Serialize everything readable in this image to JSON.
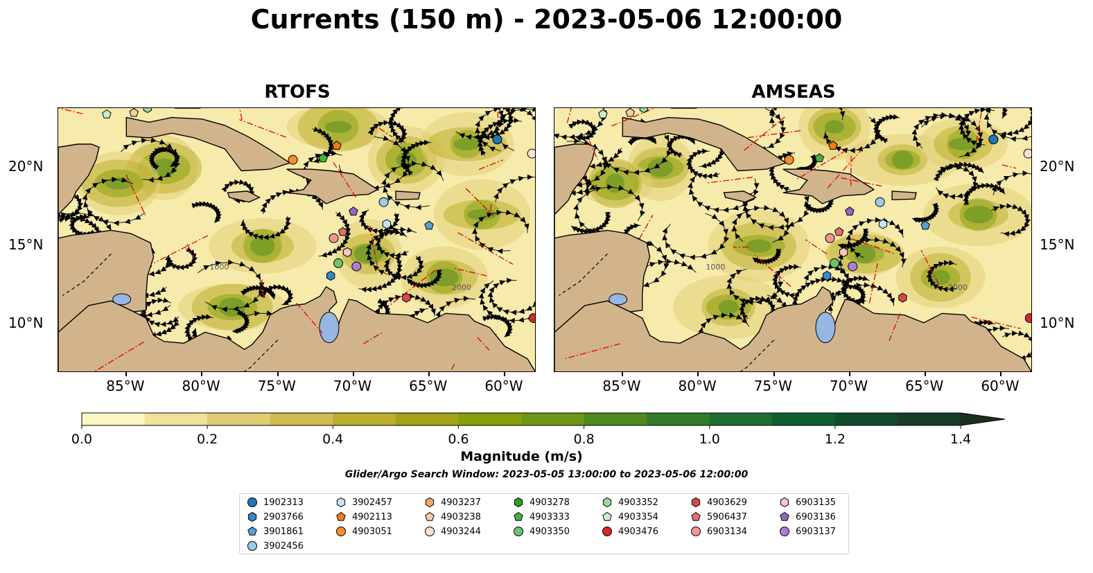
{
  "title": "Currents (150 m) - 2023-05-06 12:00:00",
  "panels": [
    {
      "title": "RTOFS"
    },
    {
      "title": "AMSEAS"
    }
  ],
  "lon_ticks": [
    "85°W",
    "80°W",
    "75°W",
    "70°W",
    "65°W",
    "60°W"
  ],
  "lat_ticks": [
    "20°N",
    "15°N",
    "10°N"
  ],
  "contour_labels": [
    "2000",
    "1000"
  ],
  "colorbar": {
    "label": "Magnitude (m/s)",
    "tick_labels": [
      "0.0",
      "0.2",
      "0.4",
      "0.6",
      "0.8",
      "1.0",
      "1.2",
      "1.4"
    ],
    "range": [
      0,
      1.5
    ],
    "colors": [
      "#fdf7c3",
      "#efe29a",
      "#e0cd73",
      "#d1bb4f",
      "#bcad2c",
      "#a3a31a",
      "#86a00c",
      "#6d9714",
      "#4f8a1f",
      "#33792a",
      "#1f6c33",
      "#0f5e32",
      "#124b2b",
      "#173d26",
      "#1a2e1d"
    ]
  },
  "search_window": "Glider/Argo Search Window: 2023-05-05 13:00:00 to 2023-05-06 12:00:00",
  "legend": [
    {
      "id": "1902313",
      "shape": "circle",
      "color": "#1f77b4"
    },
    {
      "id": "2903766",
      "shape": "hexagon",
      "color": "#3a87c8"
    },
    {
      "id": "3901861",
      "shape": "pentagon",
      "color": "#5a9fd4"
    },
    {
      "id": "3902456",
      "shape": "circle",
      "color": "#9ecae9"
    },
    {
      "id": "3902457",
      "shape": "hexagon",
      "color": "#c6e2f7"
    },
    {
      "id": "4902113",
      "shape": "pentagon",
      "color": "#f07d14"
    },
    {
      "id": "4903051",
      "shape": "circle",
      "color": "#f28e2b"
    },
    {
      "id": "4903237",
      "shape": "hexagon",
      "color": "#f5a96b"
    },
    {
      "id": "4903238",
      "shape": "pentagon",
      "color": "#f9caa0"
    },
    {
      "id": "4903244",
      "shape": "circle",
      "color": "#fde3cc"
    },
    {
      "id": "4903278",
      "shape": "hexagon",
      "color": "#2ca02c"
    },
    {
      "id": "4903333",
      "shape": "pentagon",
      "color": "#45b045"
    },
    {
      "id": "4903350",
      "shape": "circle",
      "color": "#6cc36c"
    },
    {
      "id": "4903352",
      "shape": "hexagon",
      "color": "#9ad99a"
    },
    {
      "id": "4903354",
      "shape": "pentagon",
      "color": "#c8efc8"
    },
    {
      "id": "4903476",
      "shape": "circle",
      "color": "#d62728"
    },
    {
      "id": "4903629",
      "shape": "hexagon",
      "color": "#d94848"
    },
    {
      "id": "5906437",
      "shape": "pentagon",
      "color": "#e46e6e"
    },
    {
      "id": "6903134",
      "shape": "circle",
      "color": "#f09595"
    },
    {
      "id": "6903135",
      "shape": "hexagon",
      "color": "#f8c4c4"
    },
    {
      "id": "6903136",
      "shape": "pentagon",
      "color": "#9467bd"
    },
    {
      "id": "6903137",
      "shape": "circle",
      "color": "#a97fd0"
    }
  ],
  "floats": [
    {
      "id": "1902313",
      "lon": -60.5,
      "lat": 21.8
    },
    {
      "id": "4903476",
      "lon": -58.1,
      "lat": 10.4
    },
    {
      "id": "4903051",
      "lon": -74.0,
      "lat": 20.5
    },
    {
      "id": "4903333",
      "lon": -72.0,
      "lat": 20.6
    },
    {
      "id": "4902113",
      "lon": -71.1,
      "lat": 21.4
    },
    {
      "id": "4903244",
      "lon": -58.2,
      "lat": 20.9
    },
    {
      "id": "3902456",
      "lon": -68.0,
      "lat": 17.8
    },
    {
      "id": "3902457",
      "lon": -67.8,
      "lat": 16.4
    },
    {
      "id": "3901861",
      "lon": -65.0,
      "lat": 16.3
    },
    {
      "id": "6903136",
      "lon": -70.0,
      "lat": 17.2
    },
    {
      "id": "5906437",
      "lon": -70.7,
      "lat": 15.9
    },
    {
      "id": "6903134",
      "lon": -71.3,
      "lat": 15.5
    },
    {
      "id": "6903135",
      "lon": -70.4,
      "lat": 14.6
    },
    {
      "id": "4903350",
      "lon": -71.0,
      "lat": 13.9
    },
    {
      "id": "6903137",
      "lon": -69.8,
      "lat": 13.7
    },
    {
      "id": "2903766",
      "lon": -71.5,
      "lat": 13.1
    },
    {
      "id": "4903629",
      "lon": -66.5,
      "lat": 11.7
    },
    {
      "id": "4903354",
      "lon": -86.3,
      "lat": 23.4
    },
    {
      "id": "4903238",
      "lon": -84.5,
      "lat": 23.5
    },
    {
      "id": "4903352",
      "lon": -83.6,
      "lat": 23.8
    }
  ]
}
